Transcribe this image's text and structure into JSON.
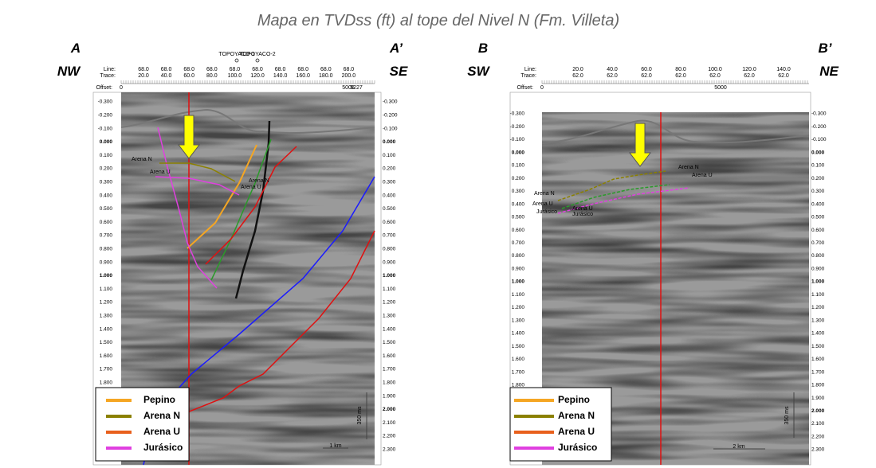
{
  "title": "Mapa en TVDss (ft) al tope del Nivel N (Fm. Villeta)",
  "panels": [
    {
      "corner_left": [
        "A",
        "NW"
      ],
      "corner_right": [
        "A’",
        "SE"
      ],
      "line_label": "Line:",
      "trace_label": "Trace:",
      "offset_label": "Offset:",
      "line_values": [
        "68.0",
        "68.0",
        "68.0",
        "68.0",
        "68.0",
        "68.0",
        "68.0",
        "68.0",
        "68.0",
        "68.0"
      ],
      "trace_values": [
        "20.0",
        "40.0",
        "60.0",
        "80.0",
        "100.0",
        "120.0",
        "140.0",
        "160.0",
        "180.0",
        "200.0"
      ],
      "offsets": [
        "0",
        "5006",
        "5227"
      ],
      "wells": [
        "TOPOYACO-1",
        "TOPOYACO-2"
      ],
      "depth_ticks": [
        "-0.300",
        "-0.200",
        "-0.100",
        "0.000",
        "0.100",
        "0.200",
        "0.300",
        "0.400",
        "0.500",
        "0.600",
        "0.700",
        "0.800",
        "0.900",
        "1.000",
        "1.100",
        "1.200",
        "1.300",
        "1.400",
        "1.500",
        "1.600",
        "1.700",
        "1.800",
        "1.900",
        "2.000",
        "2.100",
        "2.200",
        "2.300"
      ],
      "horizon_labels": [
        "Arena N",
        "Arena U",
        "Arena N",
        "Arena U"
      ],
      "legend": [
        {
          "name": "Pepino",
          "color": "#f5a623"
        },
        {
          "name": "Arena N",
          "color": "#8b8000"
        },
        {
          "name": "Arena U",
          "color": "#e8601c"
        },
        {
          "name": "Jurásico",
          "color": "#e040e0"
        }
      ],
      "scale_v": "350 ms",
      "scale_h": "1 km"
    },
    {
      "corner_left": [
        "B",
        "SW"
      ],
      "corner_right": [
        "B’",
        "NE"
      ],
      "line_label": "Line:",
      "trace_label": "Trace:",
      "offset_label": "Offset:",
      "line_values": [
        "20.0",
        "40.0",
        "60.0",
        "80.0",
        "100.0",
        "120.0",
        "140.0"
      ],
      "trace_values": [
        "62.0",
        "62.0",
        "62.0",
        "62.0",
        "62.0",
        "62.0",
        "62.0"
      ],
      "offsets": [
        "0",
        "5000"
      ],
      "wells": [],
      "depth_ticks": [
        "-0.300",
        "-0.200",
        "-0.100",
        "0.000",
        "0.100",
        "0.200",
        "0.300",
        "0.400",
        "0.500",
        "0.600",
        "0.700",
        "0.800",
        "0.900",
        "1.000",
        "1.100",
        "1.200",
        "1.300",
        "1.400",
        "1.500",
        "1.600",
        "1.700",
        "1.800",
        "1.900",
        "2.000",
        "2.100",
        "2.200",
        "2.300"
      ],
      "horizon_labels": [
        "Arena N",
        "Arena U",
        "Arena N",
        "Arena U",
        "Jurásico",
        "Arena U",
        "Jurásico"
      ],
      "legend": [
        {
          "name": "Pepino",
          "color": "#f5a623"
        },
        {
          "name": "Arena N",
          "color": "#8b8000"
        },
        {
          "name": "Arena U",
          "color": "#e8601c"
        },
        {
          "name": "Jurásico",
          "color": "#e040e0"
        }
      ],
      "scale_v": "350 ms",
      "scale_h": "2 km"
    }
  ]
}
